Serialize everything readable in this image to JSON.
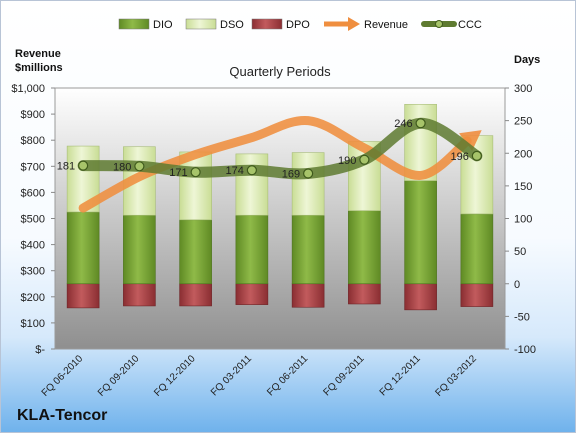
{
  "chart_data": {
    "type": "bar",
    "title": "Quarterly Periods",
    "company": "KLA-Tencor",
    "left_axis_label": [
      "Revenue",
      "$millions"
    ],
    "right_axis_label": "Days",
    "categories": [
      "FQ 06-2010",
      "FQ 09-2010",
      "FQ 12-2010",
      "FQ 03-2011",
      "FQ 06-2011",
      "FQ 09-2011",
      "FQ 12-2011",
      "FQ 03-2012"
    ],
    "left_ticks": [
      "$-",
      "$100",
      "$200",
      "$300",
      "$400",
      "$500",
      "$600",
      "$700",
      "$800",
      "$900",
      "$1,000"
    ],
    "left_ylim": [
      0,
      1000
    ],
    "right_ticks": [
      "-100",
      "-50",
      "0",
      "50",
      "100",
      "150",
      "200",
      "250",
      "300"
    ],
    "right_ylim": [
      -100,
      300
    ],
    "legend": [
      "DIO",
      "DSO",
      "DPO",
      "Revenue",
      "CCC"
    ],
    "legend_position": "top",
    "series": [
      {
        "name": "DIO",
        "axis": "right",
        "values": [
          110,
          105,
          98,
          105,
          105,
          112,
          158,
          107
        ]
      },
      {
        "name": "DSO",
        "axis": "right",
        "values": [
          101,
          105,
          104,
          94,
          96,
          106,
          117,
          120
        ]
      },
      {
        "name": "DPO",
        "axis": "right",
        "values": [
          -37,
          -34,
          -34,
          -32,
          -36,
          -31,
          -40,
          -35
        ]
      },
      {
        "name": "Revenue",
        "axis": "left",
        "values": [
          540,
          660,
          745,
          810,
          875,
          770,
          665,
          825
        ]
      },
      {
        "name": "CCC",
        "axis": "right",
        "values": [
          181,
          180,
          171,
          174,
          169,
          190,
          246,
          196
        ]
      }
    ],
    "data_labels": [
      "181",
      "180",
      "171",
      "174",
      "169",
      "190",
      "246",
      "196"
    ],
    "colors": {
      "DIO": "#7ea83a",
      "DSO": "#e2efbf",
      "DPO": "#b14a4d",
      "Revenue": "#ef8e3f",
      "CCC": "#5e7a30",
      "plot_bg": "#ababab"
    }
  }
}
